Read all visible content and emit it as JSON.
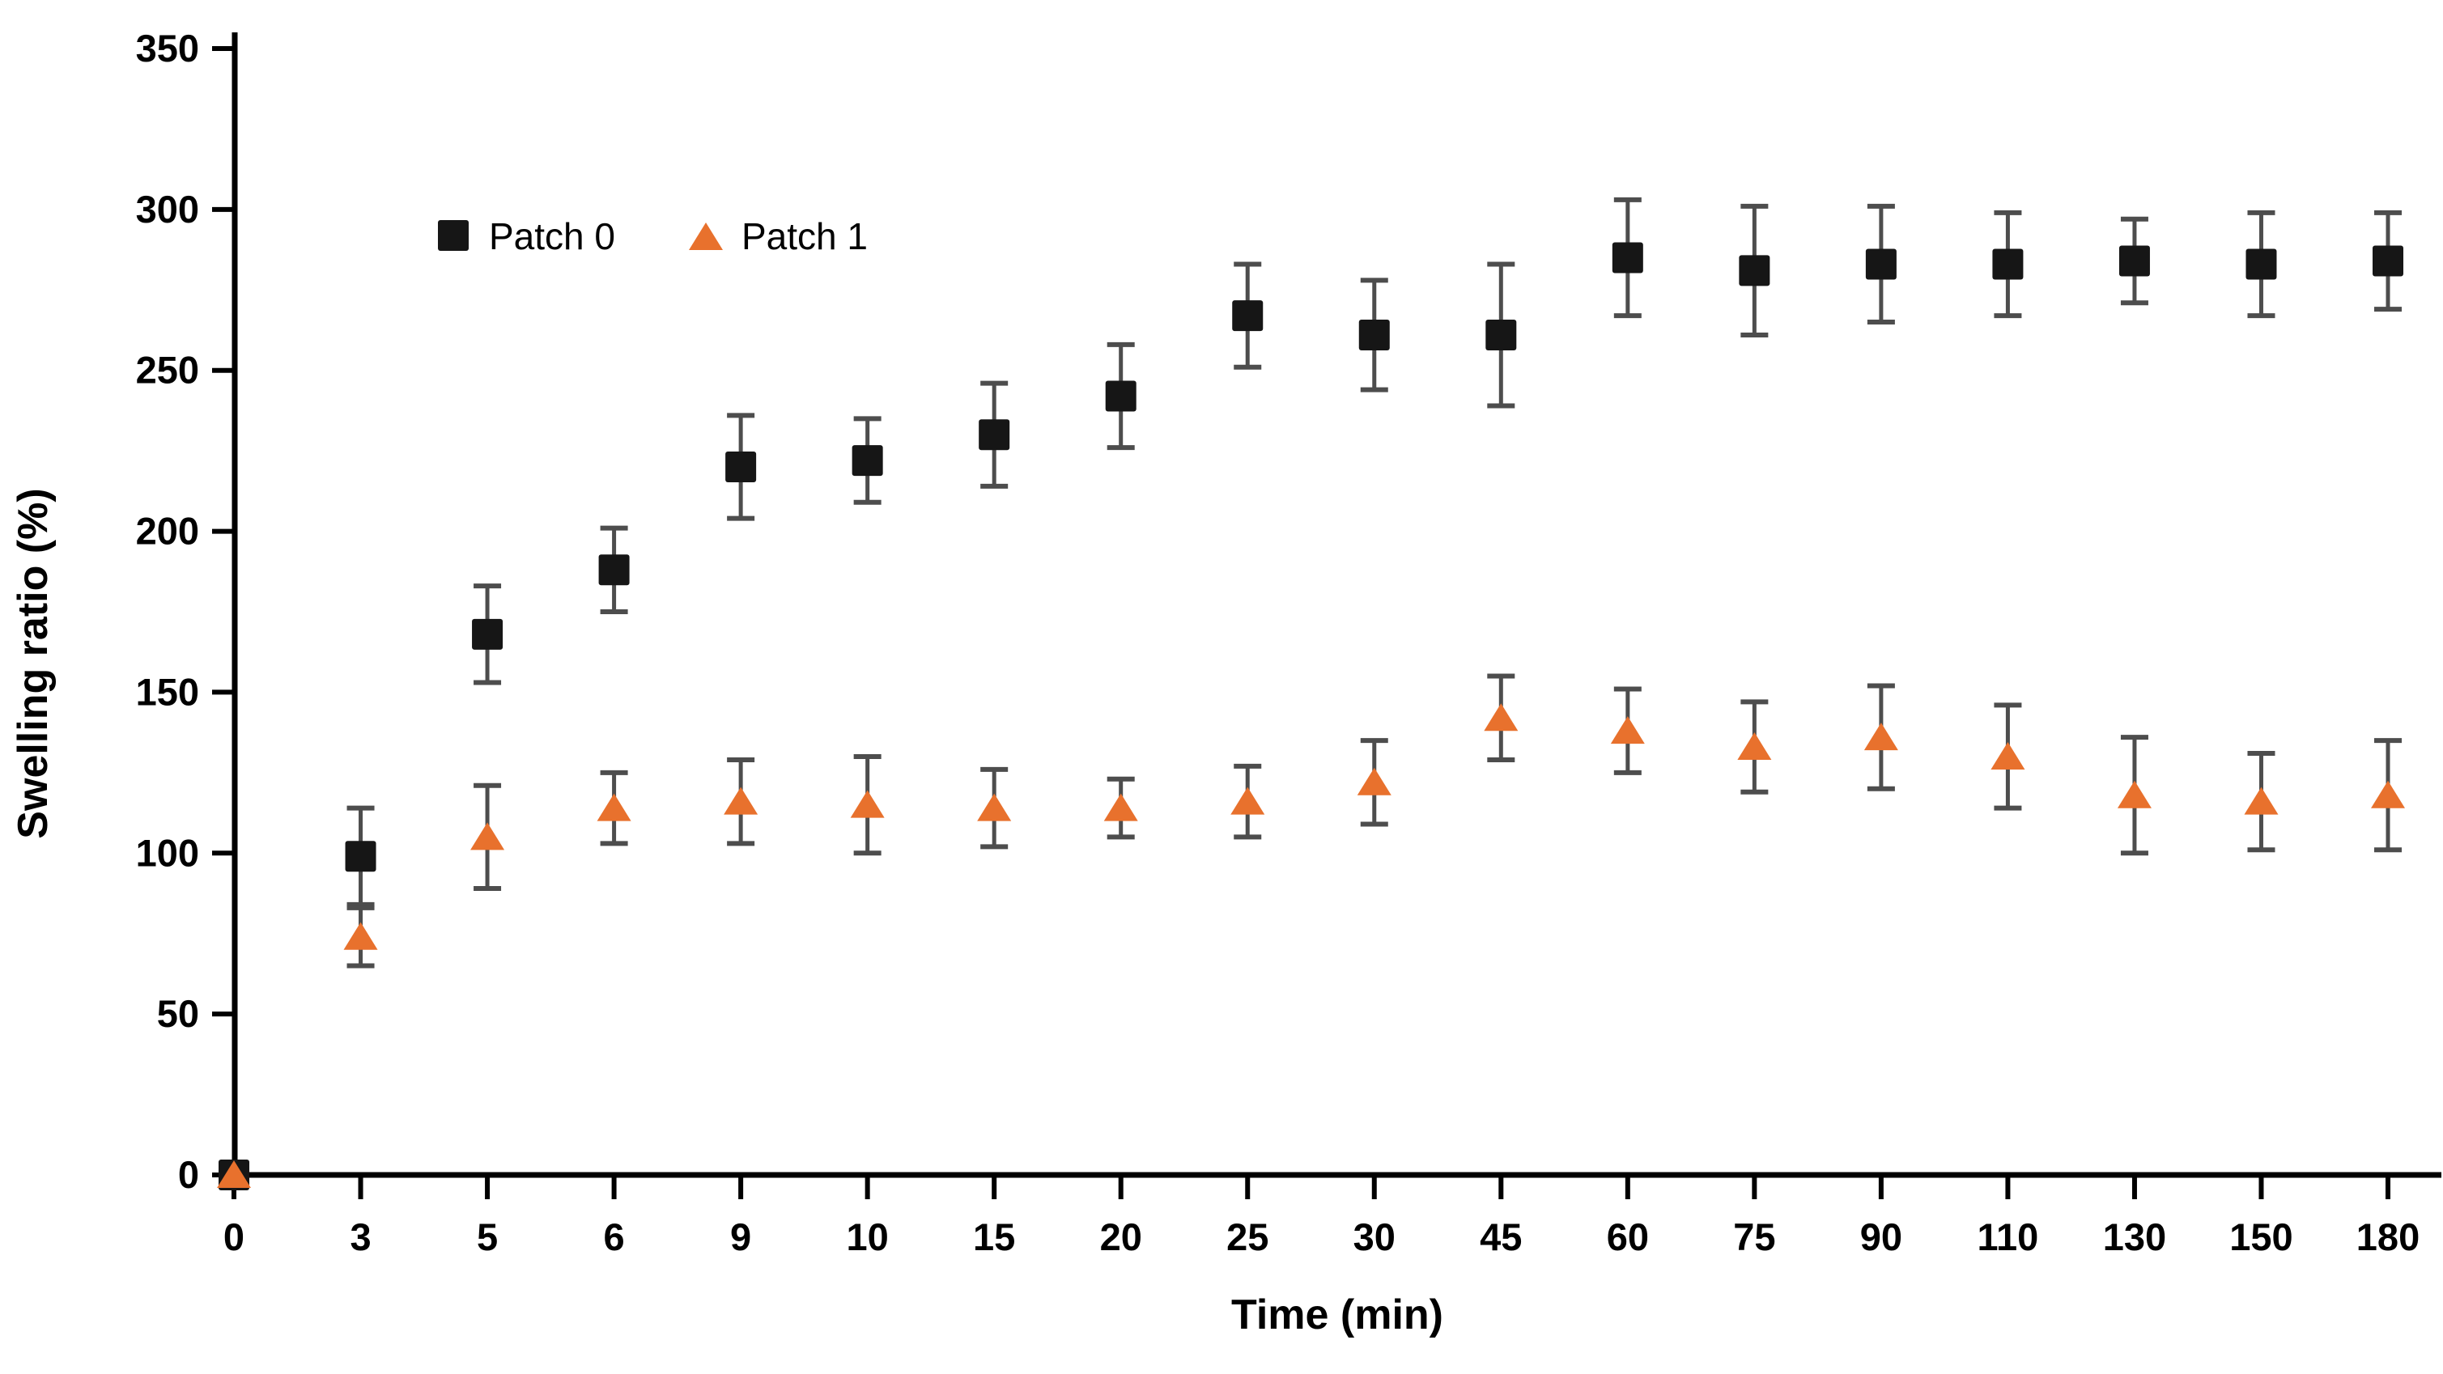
{
  "chart_data": {
    "type": "scatter",
    "title": "",
    "xlabel": "Time (min)",
    "ylabel": "Swelling ratio (%)",
    "x_categories": [
      "0",
      "3",
      "5",
      "6",
      "9",
      "10",
      "15",
      "20",
      "25",
      "30",
      "45",
      "60",
      "75",
      "90",
      "110",
      "130",
      "150",
      "180"
    ],
    "y_ticks": [
      "0",
      "50",
      "100",
      "150",
      "200",
      "250",
      "300",
      "350"
    ],
    "ylim": [
      0,
      350
    ],
    "y_tick_step": 50,
    "grid": false,
    "legend_position": "top-left-inside",
    "series": [
      {
        "name": "Patch 0",
        "marker": "square",
        "color": "#161616",
        "error_color": "#4d4d4d",
        "values": [
          0,
          99,
          168,
          188,
          220,
          222,
          230,
          242,
          267,
          261,
          261,
          285,
          281,
          283,
          283,
          284,
          283,
          284
        ],
        "errors": [
          0,
          15,
          15,
          13,
          16,
          13,
          16,
          16,
          16,
          17,
          22,
          18,
          20,
          18,
          16,
          13,
          16,
          15
        ]
      },
      {
        "name": "Patch 1",
        "marker": "triangle",
        "color": "#E8712D",
        "error_color": "#4d4d4d",
        "values": [
          0,
          74,
          105,
          114,
          116,
          115,
          114,
          114,
          116,
          122,
          142,
          138,
          133,
          136,
          130,
          118,
          116,
          118
        ],
        "errors": [
          0,
          9,
          16,
          11,
          13,
          15,
          12,
          9,
          11,
          13,
          13,
          13,
          14,
          16,
          16,
          18,
          15,
          17
        ]
      }
    ]
  },
  "colors": {
    "background": "#ffffff",
    "axis": "#000000",
    "error_bar": "#4d4d4d",
    "series_patch0": "#161616",
    "series_patch1": "#E8712D"
  }
}
